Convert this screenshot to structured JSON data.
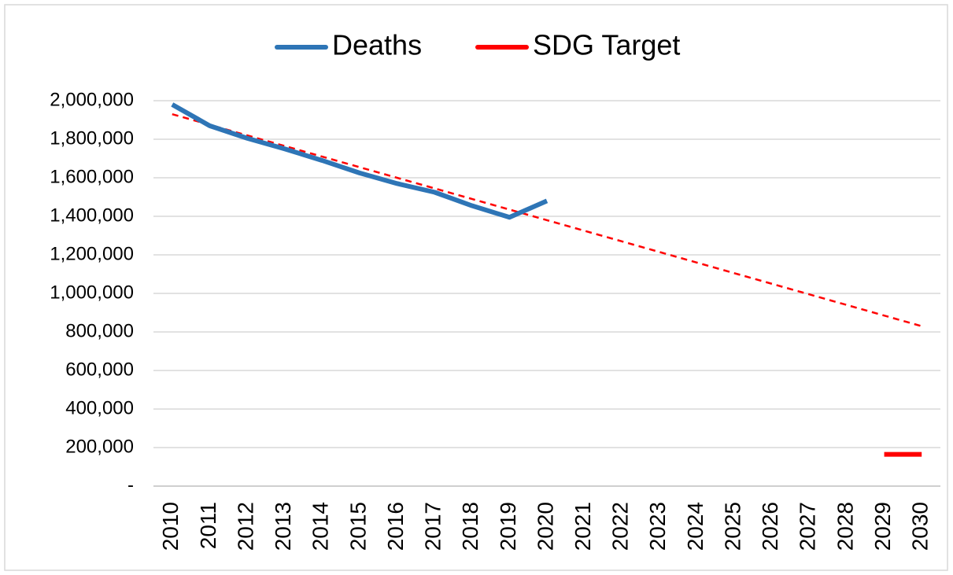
{
  "chart_data": {
    "type": "line",
    "categories": [
      "2010",
      "2011",
      "2012",
      "2013",
      "2014",
      "2015",
      "2016",
      "2017",
      "2018",
      "2019",
      "2020",
      "2021",
      "2022",
      "2023",
      "2024",
      "2025",
      "2026",
      "2027",
      "2028",
      "2029",
      "2030"
    ],
    "series": [
      {
        "name": "Deaths",
        "color": "#2e75b6",
        "values": [
          1980000,
          1870000,
          1805000,
          1750000,
          1690000,
          1625000,
          1570000,
          1525000,
          1455000,
          1395000,
          1480000,
          null,
          null,
          null,
          null,
          null,
          null,
          null,
          null,
          null,
          null
        ]
      },
      {
        "name": "SDG Target",
        "color": "#ff0000",
        "values": [
          null,
          null,
          null,
          null,
          null,
          null,
          null,
          null,
          null,
          null,
          null,
          null,
          null,
          null,
          null,
          null,
          null,
          null,
          null,
          165000,
          165000
        ]
      }
    ],
    "trendline": {
      "color": "#ff0000",
      "values": [
        1930000,
        1875000,
        1820000,
        1765000,
        1710000,
        1655000,
        1600000,
        1545000,
        1490000,
        1435000,
        1380000,
        1325000,
        1270000,
        1215000,
        1160000,
        1105000,
        1050000,
        995000,
        940000,
        885000,
        830000
      ]
    },
    "ylim": [
      0,
      2000000
    ],
    "yticks": [
      {
        "value": 0,
        "label": "-"
      },
      {
        "value": 200000,
        "label": "200,000"
      },
      {
        "value": 400000,
        "label": "400,000"
      },
      {
        "value": 600000,
        "label": "600,000"
      },
      {
        "value": 800000,
        "label": "800,000"
      },
      {
        "value": 1000000,
        "label": "1,000,000"
      },
      {
        "value": 1200000,
        "label": "1,200,000"
      },
      {
        "value": 1400000,
        "label": "1,400,000"
      },
      {
        "value": 1600000,
        "label": "1,600,000"
      },
      {
        "value": 1800000,
        "label": "1,800,000"
      },
      {
        "value": 2000000,
        "label": "2,000,000"
      }
    ],
    "grid": true,
    "legend": "top"
  }
}
